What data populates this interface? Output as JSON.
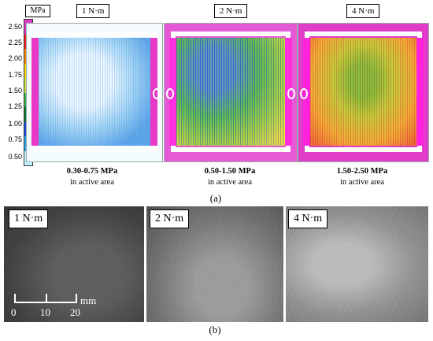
{
  "colorbar": {
    "unit": "MPa",
    "ticks": [
      "2.50",
      "2.25",
      "2.00",
      "1.75",
      "1.50",
      "1.25",
      "1.00",
      "0.75",
      "0.50"
    ],
    "colors": [
      "#e03cc8",
      "#ff1f1f",
      "#ff8a00",
      "#ffd800",
      "#c8e63c",
      "#39b54a",
      "#0f7a2f",
      "#1f4fe8",
      "#2aa6f0",
      "#bff3ff"
    ]
  },
  "panel_a": {
    "caption": "(a)",
    "maps": [
      {
        "torque": "1 N·m",
        "range": "0.30-0.75 MPa",
        "note": "in active area"
      },
      {
        "torque": "2 N·m",
        "range": "0.50-1.50 MPa",
        "note": "in active area"
      },
      {
        "torque": "4 N·m",
        "range": "1.50-2.50 MPa",
        "note": "in active area"
      }
    ]
  },
  "panel_b": {
    "caption": "(b)",
    "micrographs": [
      {
        "torque": "1 N·m"
      },
      {
        "torque": "2 N·m"
      },
      {
        "torque": "4 N·m"
      }
    ],
    "scale_bar": {
      "ticks": [
        "0",
        "10",
        "20"
      ],
      "unit": "mm"
    }
  }
}
